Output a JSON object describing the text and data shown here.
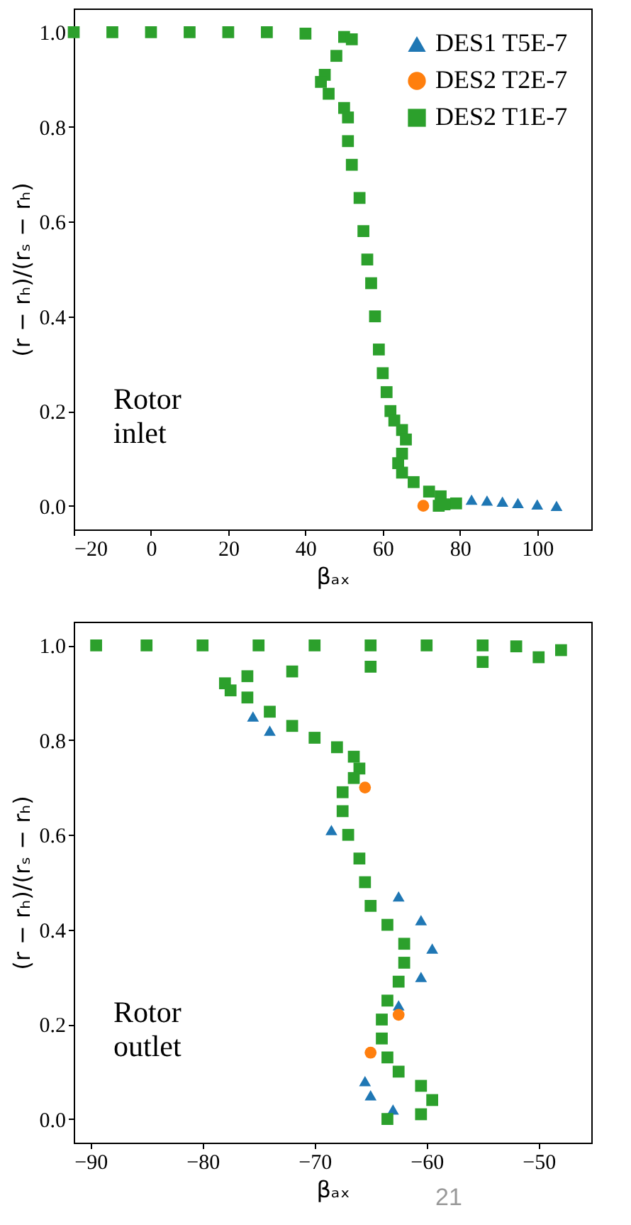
{
  "chart_data": [
    {
      "type": "scatter",
      "xlabel": "βₐₓ",
      "ylabel": "(r − rₕ)/(rₛ − rₕ)",
      "xlim": [
        -20,
        114
      ],
      "xticks": [
        -20,
        0,
        20,
        40,
        60,
        80,
        100
      ],
      "ylim": [
        -0.05,
        1.05
      ],
      "yticks": [
        {
          "value": 0,
          "label": "0.0"
        },
        {
          "value": 0.2,
          "label": "0.2"
        },
        {
          "value": 0.4,
          "label": "0.4"
        },
        {
          "value": 0.6,
          "label": "0.6"
        },
        {
          "value": 0.8,
          "label": "0.8"
        },
        {
          "value": 1,
          "label": "1.0"
        }
      ],
      "grid": false,
      "legend": "top right",
      "annotations": [
        "Rotor\ninlet"
      ],
      "series": [
        {
          "name": "DES1 T5E-7",
          "color": "#1f77b4",
          "marker": "triangle",
          "x": [
            83,
            87,
            91,
            95,
            100,
            105
          ],
          "values": [
            0.013,
            0.011,
            0.009,
            0.006,
            0.003,
            0
          ]
        },
        {
          "name": "DES2 T2E-7",
          "color": "#ff7f0e",
          "marker": "circle",
          "x": [
            70.5
          ],
          "values": [
            0
          ]
        },
        {
          "name": "DES2 T1E-7",
          "color": "#2ca02c",
          "marker": "square",
          "x": [
            -20,
            -10,
            0,
            10,
            20,
            30,
            40,
            50,
            52,
            48,
            45,
            44,
            46,
            50,
            51,
            51,
            52,
            54,
            55,
            56,
            57,
            58,
            59,
            60,
            61,
            62,
            63,
            65,
            66,
            65,
            64,
            65,
            68,
            72,
            75,
            79,
            76,
            74.5
          ],
          "values": [
            1,
            1,
            1,
            1,
            1,
            1,
            0.997,
            0.99,
            0.985,
            0.95,
            0.91,
            0.895,
            0.87,
            0.84,
            0.82,
            0.77,
            0.72,
            0.65,
            0.58,
            0.52,
            0.47,
            0.4,
            0.33,
            0.28,
            0.24,
            0.2,
            0.18,
            0.16,
            0.14,
            0.11,
            0.09,
            0.07,
            0.05,
            0.03,
            0.02,
            0.005,
            0.003,
            0
          ]
        }
      ]
    },
    {
      "type": "scatter",
      "xlabel": "βₐₓ",
      "ylabel": "(r − rₕ)/(rₛ − rₕ)",
      "xlim": [
        -91.5,
        -45.3
      ],
      "xticks": [
        -90,
        -80,
        -70,
        -60,
        -50
      ],
      "ylim": [
        -0.05,
        1.05
      ],
      "yticks": [
        {
          "value": 0,
          "label": "0.0"
        },
        {
          "value": 0.2,
          "label": "0.2"
        },
        {
          "value": 0.4,
          "label": "0.4"
        },
        {
          "value": 0.6,
          "label": "0.6"
        },
        {
          "value": 0.8,
          "label": "0.8"
        },
        {
          "value": 1,
          "label": "1.0"
        }
      ],
      "grid": false,
      "legend": false,
      "annotations": [
        "Rotor\noutlet",
        "21"
      ],
      "series": [
        {
          "name": "DES1 T5E-7",
          "color": "#1f77b4",
          "marker": "triangle",
          "x": [
            -75.5,
            -74,
            -68.5,
            -62.5,
            -60.5,
            -59.5,
            -60.5,
            -62.5,
            -65.5,
            -65,
            -63
          ],
          "values": [
            0.85,
            0.82,
            0.61,
            0.47,
            0.42,
            0.36,
            0.3,
            0.24,
            0.08,
            0.05,
            0.02
          ]
        },
        {
          "name": "DES2 T2E-7",
          "color": "#ff7f0e",
          "marker": "circle",
          "x": [
            -65.5,
            -62.5,
            -65
          ],
          "values": [
            0.7,
            0.22,
            0.14
          ]
        },
        {
          "name": "DES2 T1E-7",
          "color": "#2ca02c",
          "marker": "square",
          "x": [
            -89.5,
            -85,
            -80,
            -75,
            -70,
            -65,
            -60,
            -55,
            -52,
            -48,
            -50,
            -55,
            -65,
            -72,
            -76,
            -78,
            -77.5,
            -76,
            -74,
            -72,
            -70,
            -68,
            -66.5,
            -66,
            -66.5,
            -67.5,
            -67.5,
            -67,
            -66,
            -65.5,
            -65,
            -63.5,
            -62,
            -62,
            -62.5,
            -63.5,
            -64,
            -64,
            -63.5,
            -62.5,
            -60.5,
            -59.5,
            -60.5,
            -63.5
          ],
          "values": [
            1,
            1,
            1,
            1,
            1,
            1,
            1,
            1,
            0.998,
            0.99,
            0.975,
            0.965,
            0.955,
            0.945,
            0.935,
            0.92,
            0.905,
            0.89,
            0.86,
            0.83,
            0.805,
            0.785,
            0.765,
            0.74,
            0.72,
            0.69,
            0.65,
            0.6,
            0.55,
            0.5,
            0.45,
            0.41,
            0.37,
            0.33,
            0.29,
            0.25,
            0.21,
            0.17,
            0.13,
            0.1,
            0.07,
            0.04,
            0.01,
            0
          ]
        }
      ]
    }
  ]
}
